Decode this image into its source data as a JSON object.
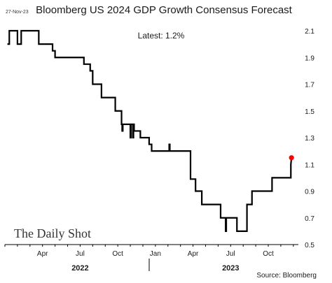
{
  "header": {
    "date": "27-Nov-23",
    "title": "Bloomberg US 2024 GDP Growth Consensus Forecast",
    "latest": "Latest:  1.2%"
  },
  "footer": {
    "source": "Source: Bloomberg",
    "watermark": "The Daily Shot"
  },
  "chart_data": {
    "type": "line",
    "title": "Bloomberg US 2024 GDP Growth Consensus Forecast",
    "xlabel": "",
    "ylabel": "",
    "ylim": [
      0.5,
      2.1
    ],
    "yticks": [
      "0.5",
      "0.7",
      "0.9",
      "1.1",
      "1.3",
      "1.5",
      "1.7",
      "1.9",
      "2.1"
    ],
    "xticks": [
      {
        "label": "Apr",
        "t": 3
      },
      {
        "label": "Jul",
        "t": 6
      },
      {
        "label": "Oct",
        "t": 9
      },
      {
        "label": "Jan",
        "t": 12
      },
      {
        "label": "Apr",
        "t": 15
      },
      {
        "label": "Jul",
        "t": 18
      },
      {
        "label": "Oct",
        "t": 21
      }
    ],
    "years": [
      {
        "label": "2022",
        "t": 6
      },
      {
        "label": "2023",
        "t": 18
      }
    ],
    "time_unit": "months since 2022-01-01",
    "grid": false,
    "line_color": "#000000",
    "endpoint_color": "#ff0000",
    "series": [
      {
        "points": [
          [
            0.2,
            2.0
          ],
          [
            0.35,
            2.0
          ],
          [
            0.35,
            2.1
          ],
          [
            1.0,
            2.1
          ],
          [
            1.0,
            2.0
          ],
          [
            1.3,
            2.0
          ],
          [
            1.3,
            2.1
          ],
          [
            2.7,
            2.1
          ],
          [
            2.7,
            2.0
          ],
          [
            3.8,
            2.0
          ],
          [
            3.8,
            1.95
          ],
          [
            4.0,
            1.95
          ],
          [
            4.0,
            1.9
          ],
          [
            6.3,
            1.9
          ],
          [
            6.3,
            1.85
          ],
          [
            6.8,
            1.85
          ],
          [
            6.8,
            1.8
          ],
          [
            7.0,
            1.8
          ],
          [
            7.0,
            1.7
          ],
          [
            7.7,
            1.7
          ],
          [
            7.7,
            1.6
          ],
          [
            8.8,
            1.6
          ],
          [
            8.8,
            1.5
          ],
          [
            9.3,
            1.5
          ],
          [
            9.3,
            1.4
          ],
          [
            9.35,
            1.4
          ],
          [
            9.35,
            1.35
          ],
          [
            9.4,
            1.35
          ],
          [
            9.4,
            1.4
          ],
          [
            10.0,
            1.4
          ],
          [
            10.0,
            1.3
          ],
          [
            10.05,
            1.3
          ],
          [
            10.05,
            1.4
          ],
          [
            10.2,
            1.4
          ],
          [
            10.2,
            1.3
          ],
          [
            10.25,
            1.3
          ],
          [
            10.25,
            1.4
          ],
          [
            10.3,
            1.4
          ],
          [
            10.3,
            1.35
          ],
          [
            10.8,
            1.35
          ],
          [
            10.8,
            1.3
          ],
          [
            11.5,
            1.3
          ],
          [
            11.5,
            1.25
          ],
          [
            11.7,
            1.25
          ],
          [
            11.7,
            1.2
          ],
          [
            13.1,
            1.2
          ],
          [
            13.1,
            1.25
          ],
          [
            13.15,
            1.25
          ],
          [
            13.15,
            1.2
          ],
          [
            14.8,
            1.2
          ],
          [
            14.8,
            0.99
          ],
          [
            15.2,
            0.99
          ],
          [
            15.2,
            0.9
          ],
          [
            15.7,
            0.9
          ],
          [
            15.7,
            0.8
          ],
          [
            17.2,
            0.8
          ],
          [
            17.2,
            0.7
          ],
          [
            17.6,
            0.7
          ],
          [
            17.6,
            0.6
          ],
          [
            17.65,
            0.6
          ],
          [
            17.65,
            0.7
          ],
          [
            18.5,
            0.7
          ],
          [
            18.5,
            0.6
          ],
          [
            19.3,
            0.6
          ],
          [
            19.3,
            0.8
          ],
          [
            19.7,
            0.8
          ],
          [
            19.7,
            0.9
          ],
          [
            21.3,
            0.9
          ],
          [
            21.3,
            1.0
          ],
          [
            22.8,
            1.0
          ],
          [
            22.8,
            1.1
          ],
          [
            22.85,
            1.15
          ]
        ],
        "last": {
          "t": 22.85,
          "value": 1.15
        }
      }
    ]
  }
}
